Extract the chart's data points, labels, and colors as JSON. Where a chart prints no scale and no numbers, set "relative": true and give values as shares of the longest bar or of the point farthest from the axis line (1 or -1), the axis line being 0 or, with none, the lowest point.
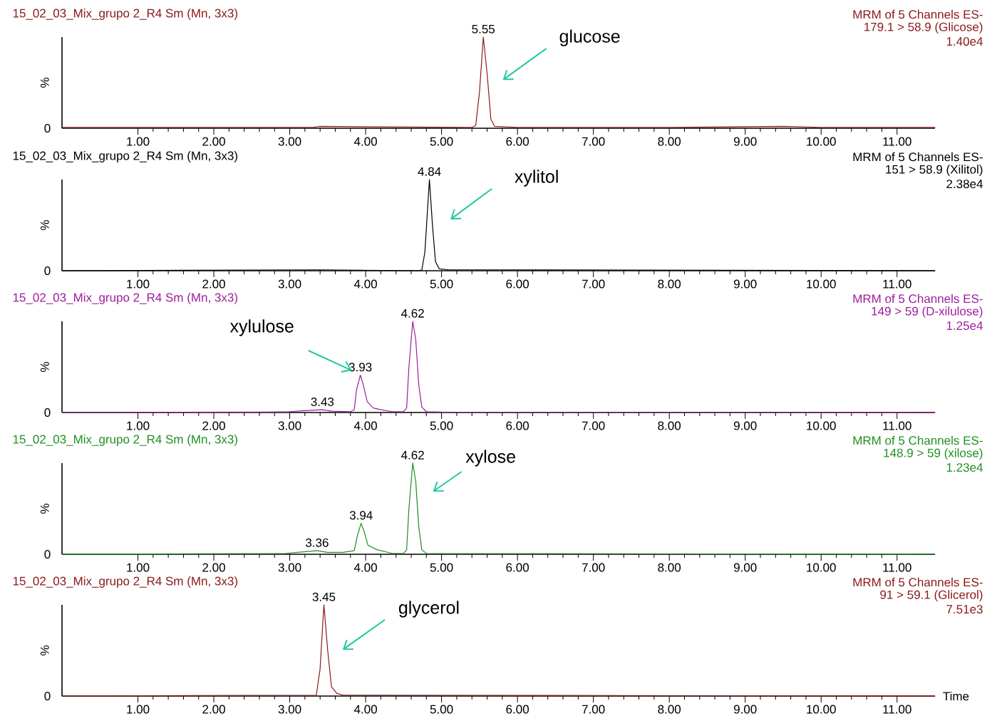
{
  "chart_data": [
    {
      "type": "line",
      "relative": true,
      "title": "15_02_03_Mix_grupo 2_R4 Sm (Mn, 3x3)",
      "subtitle": "MRM of 5 Channels ES-",
      "ylabel": "%",
      "xlim": [
        0,
        11.5
      ],
      "xticks": [
        {
          "value": 1,
          "label": "1.00"
        },
        {
          "value": 2,
          "label": "2.00"
        },
        {
          "value": 3,
          "label": "3.00"
        },
        {
          "value": 4,
          "label": "4.00"
        },
        {
          "value": 5,
          "label": "5.00"
        },
        {
          "value": 6,
          "label": "6.00"
        },
        {
          "value": 7,
          "label": "7.00"
        },
        {
          "value": 8,
          "label": "8.00"
        },
        {
          "value": 9,
          "label": "9.00"
        },
        {
          "value": 10,
          "label": "10.00"
        },
        {
          "value": 11,
          "label": "11.00"
        }
      ],
      "annotations": [
        "179.1 > 58.9 (Glicose)",
        "1.40e4",
        "0",
        {
          "text": "5.55",
          "x": 5.55,
          "y": 1
        },
        "glucose"
      ],
      "series": [
        {
          "color": "#8b1a1a",
          "x": [
            0,
            1,
            2,
            3.3,
            3.4,
            5.4,
            5.45,
            5.5,
            5.55,
            5.6,
            5.65,
            5.7,
            6,
            8,
            9.5,
            10,
            11.5
          ],
          "values": [
            0.01,
            0.01,
            0.01,
            0.01,
            0.02,
            0.01,
            0.03,
            0.4,
            1,
            0.6,
            0.1,
            0.02,
            0.01,
            0.01,
            0.02,
            0.01,
            0.01
          ]
        }
      ]
    },
    {
      "type": "line",
      "relative": true,
      "title": "15_02_03_Mix_grupo 2_R4 Sm (Mn, 3x3)",
      "subtitle": "MRM of 5 Channels ES-",
      "ylabel": "%",
      "xlim": [
        0,
        11.5
      ],
      "xticks": [
        {
          "value": 1,
          "label": "1.00"
        },
        {
          "value": 2,
          "label": "2.00"
        },
        {
          "value": 3,
          "label": "3.00"
        },
        {
          "value": 4,
          "label": "4.00"
        },
        {
          "value": 5,
          "label": "5.00"
        },
        {
          "value": 6,
          "label": "6.00"
        },
        {
          "value": 7,
          "label": "7.00"
        },
        {
          "value": 8,
          "label": "8.00"
        },
        {
          "value": 9,
          "label": "9.00"
        },
        {
          "value": 10,
          "label": "10.00"
        },
        {
          "value": 11,
          "label": "11.00"
        }
      ],
      "annotations": [
        "151 > 58.9 (Xilitol)",
        "2.38e4",
        "0",
        {
          "text": "4.84",
          "x": 4.84,
          "y": 1
        },
        "xylitol"
      ],
      "series": [
        {
          "color": "#000000",
          "x": [
            0,
            3.4,
            4.7,
            4.74,
            4.78,
            4.84,
            4.88,
            4.92,
            4.97,
            5.1,
            5.3,
            11.5
          ],
          "values": [
            0,
            0.01,
            0,
            0.01,
            0.2,
            1,
            0.5,
            0.1,
            0.02,
            0.01,
            0.01,
            0
          ]
        }
      ]
    },
    {
      "type": "line",
      "relative": true,
      "title": "15_02_03_Mix_grupo 2_R4 Sm (Mn, 3x3)",
      "subtitle": "MRM of 5 Channels ES-",
      "ylabel": "%",
      "xlim": [
        0,
        11.5
      ],
      "xticks": [
        {
          "value": 1,
          "label": "1.00"
        },
        {
          "value": 2,
          "label": "2.00"
        },
        {
          "value": 3,
          "label": "3.00"
        },
        {
          "value": 4,
          "label": "4.00"
        },
        {
          "value": 5,
          "label": "5.00"
        },
        {
          "value": 6,
          "label": "6.00"
        },
        {
          "value": 7,
          "label": "7.00"
        },
        {
          "value": 8,
          "label": "8.00"
        },
        {
          "value": 9,
          "label": "9.00"
        },
        {
          "value": 10,
          "label": "10.00"
        },
        {
          "value": 11,
          "label": "11.00"
        }
      ],
      "annotations": [
        "149 > 59 (D-xilulose)",
        "1.25e4",
        "0",
        {
          "text": "3.43",
          "x": 3.43,
          "y": 0.03
        },
        {
          "text": "3.93",
          "x": 3.93,
          "y": 0.41
        },
        {
          "text": "4.62",
          "x": 4.62,
          "y": 1
        },
        "xylulose"
      ],
      "series": [
        {
          "color": "#9b1f9b",
          "x": [
            0,
            2.7,
            3.0,
            3.2,
            3.43,
            3.55,
            3.8,
            3.85,
            3.88,
            3.93,
            3.97,
            4.02,
            4.1,
            4.2,
            4.35,
            4.5,
            4.54,
            4.57,
            4.62,
            4.66,
            4.7,
            4.74,
            4.8,
            5.0,
            11.5
          ],
          "values": [
            0,
            0.005,
            0.01,
            0.02,
            0.03,
            0.015,
            0.01,
            0.03,
            0.25,
            0.41,
            0.3,
            0.12,
            0.05,
            0.03,
            0.01,
            0.01,
            0.05,
            0.5,
            1,
            0.8,
            0.3,
            0.06,
            0.01,
            0.005,
            0
          ]
        }
      ]
    },
    {
      "type": "line",
      "relative": true,
      "title": "15_02_03_Mix_grupo 2_R4 Sm (Mn, 3x3)",
      "subtitle": "MRM of 5 Channels ES-",
      "ylabel": "%",
      "xlim": [
        0,
        11.5
      ],
      "xticks": [
        {
          "value": 1,
          "label": "1.00"
        },
        {
          "value": 2,
          "label": "2.00"
        },
        {
          "value": 3,
          "label": "3.00"
        },
        {
          "value": 4,
          "label": "4.00"
        },
        {
          "value": 5,
          "label": "5.00"
        },
        {
          "value": 6,
          "label": "6.00"
        },
        {
          "value": 7,
          "label": "7.00"
        },
        {
          "value": 8,
          "label": "8.00"
        },
        {
          "value": 9,
          "label": "9.00"
        },
        {
          "value": 10,
          "label": "10.00"
        },
        {
          "value": 11,
          "label": "11.00"
        }
      ],
      "annotations": [
        "148.9 > 59 (xilose)",
        "1.23e4",
        "0",
        {
          "text": "3.36",
          "x": 3.36,
          "y": 0.04
        },
        {
          "text": "3.94",
          "x": 3.94,
          "y": 0.34
        },
        {
          "text": "4.62",
          "x": 4.62,
          "y": 1
        },
        "xylose"
      ],
      "series": [
        {
          "color": "#1f8f1f",
          "x": [
            0,
            2.95,
            3.1,
            3.36,
            3.5,
            3.7,
            3.85,
            3.89,
            3.94,
            3.98,
            4.03,
            4.15,
            4.35,
            4.5,
            4.54,
            4.57,
            4.62,
            4.66,
            4.7,
            4.74,
            4.8,
            11.5
          ],
          "values": [
            0,
            0.01,
            0.02,
            0.04,
            0.02,
            0.02,
            0.04,
            0.2,
            0.34,
            0.25,
            0.1,
            0.05,
            0.01,
            0.01,
            0.05,
            0.5,
            1,
            0.8,
            0.3,
            0.05,
            0.01,
            0
          ]
        }
      ]
    },
    {
      "type": "line",
      "relative": true,
      "title": "15_02_03_Mix_grupo 2_R4 Sm (Mn, 3x3)",
      "subtitle": "MRM of 5 Channels ES-",
      "ylabel": "%",
      "xlabel": "Time",
      "xlim": [
        0,
        11.5
      ],
      "xticks": [
        {
          "value": 1,
          "label": "1.00"
        },
        {
          "value": 2,
          "label": "2.00"
        },
        {
          "value": 3,
          "label": "3.00"
        },
        {
          "value": 4,
          "label": "4.00"
        },
        {
          "value": 5,
          "label": "5.00"
        },
        {
          "value": 6,
          "label": "6.00"
        },
        {
          "value": 7,
          "label": "7.00"
        },
        {
          "value": 8,
          "label": "8.00"
        },
        {
          "value": 9,
          "label": "9.00"
        },
        {
          "value": 10,
          "label": "10.00"
        },
        {
          "value": 11,
          "label": "11.00"
        }
      ],
      "annotations": [
        "91 > 59.1 (Glicerol)",
        "7.51e3",
        "0",
        {
          "text": "3.45",
          "x": 3.45,
          "y": 1
        },
        "glycerol"
      ],
      "series": [
        {
          "color": "#8b1a1a",
          "x": [
            0,
            3.35,
            3.4,
            3.45,
            3.5,
            3.55,
            3.62,
            3.7,
            4.3,
            11.5
          ],
          "values": [
            0,
            0.01,
            0.3,
            1,
            0.5,
            0.1,
            0.03,
            0.01,
            0.01,
            0
          ]
        }
      ]
    }
  ]
}
